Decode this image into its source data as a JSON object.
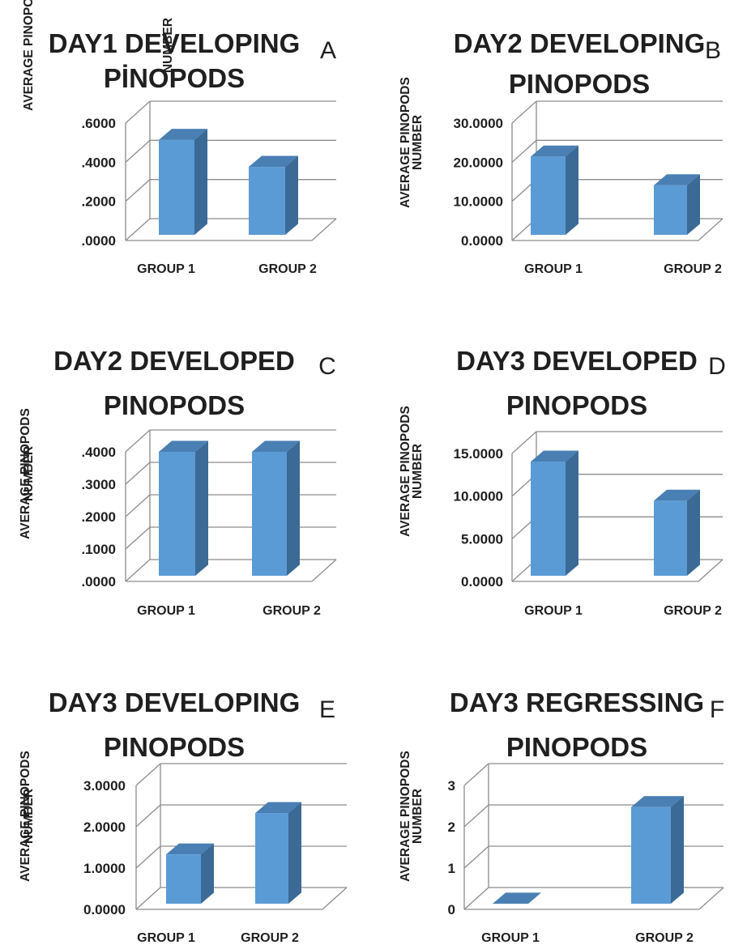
{
  "chart_data": [
    {
      "panel": "A",
      "type": "bar",
      "title_lines": [
        "DAY1 DEVELOPING",
        "PİNOPODS"
      ],
      "ylabel_lines": [
        "AVERAGE PINOPODS",
        "NUMBER"
      ],
      "categories": [
        "GROUP 1",
        "GROUP 2"
      ],
      "values": [
        0.51,
        0.365
      ],
      "yticks": [
        ".0000",
        ".2000",
        ".4000",
        ".6000"
      ],
      "ylim": [
        0,
        0.6
      ],
      "grid": true
    },
    {
      "panel": "B",
      "type": "bar",
      "title_lines": [
        "DAY2 DEVELOPING",
        "PINOPODS"
      ],
      "ylabel_lines": [
        "AVERAGE PINOPODS",
        "NUMBER"
      ],
      "categories": [
        "GROUP 1",
        "GROUP 2"
      ],
      "values": [
        21.0,
        13.3
      ],
      "yticks": [
        "0.0000",
        "10.0000",
        "20.0000",
        "30.0000"
      ],
      "ylim": [
        0,
        30
      ],
      "grid": true
    },
    {
      "panel": "C",
      "type": "bar",
      "title_lines": [
        "DAY2 DEVELOPED",
        "PINOPODS"
      ],
      "ylabel_lines": [
        "AVERAGE PINOPODS",
        "NUMBER"
      ],
      "categories": [
        "GROUP 1",
        "GROUP 2"
      ],
      "values": [
        0.4,
        0.4
      ],
      "yticks": [
        ".0000",
        ".1000",
        ".2000",
        ".3000",
        ".4000"
      ],
      "ylim": [
        0,
        0.4
      ],
      "grid": true
    },
    {
      "panel": "D",
      "type": "bar",
      "title_lines": [
        "DAY3 DEVELOPED",
        "PINOPODS"
      ],
      "ylabel_lines": [
        "AVERAGE PINOPODS",
        "NUMBER"
      ],
      "categories": [
        "GROUP 1",
        "GROUP 2"
      ],
      "values": [
        14.0,
        9.2
      ],
      "yticks": [
        "0.0000",
        "5.0000",
        "10.0000",
        "15.0000"
      ],
      "ylim": [
        0,
        15
      ],
      "grid": true
    },
    {
      "panel": "E",
      "type": "bar",
      "title_lines": [
        "DAY3 DEVELOPING",
        "PINOPODS"
      ],
      "ylabel_lines": [
        "AVERAGE PINOPODS",
        "NUMBER"
      ],
      "categories": [
        "GROUP 1",
        "GROUP 2"
      ],
      "values": [
        1.25,
        2.3
      ],
      "yticks": [
        "0.0000",
        "1.0000",
        "2.0000",
        "3.0000"
      ],
      "ylim": [
        0,
        3
      ],
      "grid": true
    },
    {
      "panel": "F",
      "type": "bar",
      "title_lines": [
        "DAY3 REGRESSING",
        "PINOPODS"
      ],
      "ylabel_lines": [
        "AVERAGE PINOPODS",
        "NUMBER"
      ],
      "categories": [
        "GROUP 1",
        "GROUP 2"
      ],
      "values": [
        0,
        2.45
      ],
      "yticks": [
        "0",
        "1",
        "2",
        "3"
      ],
      "ylim": [
        0,
        3
      ],
      "grid": true
    }
  ],
  "colors": {
    "bar_front": "#5b9bd5",
    "bar_side": "#3b6a96",
    "bar_top": "#4a7fb3",
    "grid": "#8c8c8c",
    "text": "#1f1f1f"
  }
}
